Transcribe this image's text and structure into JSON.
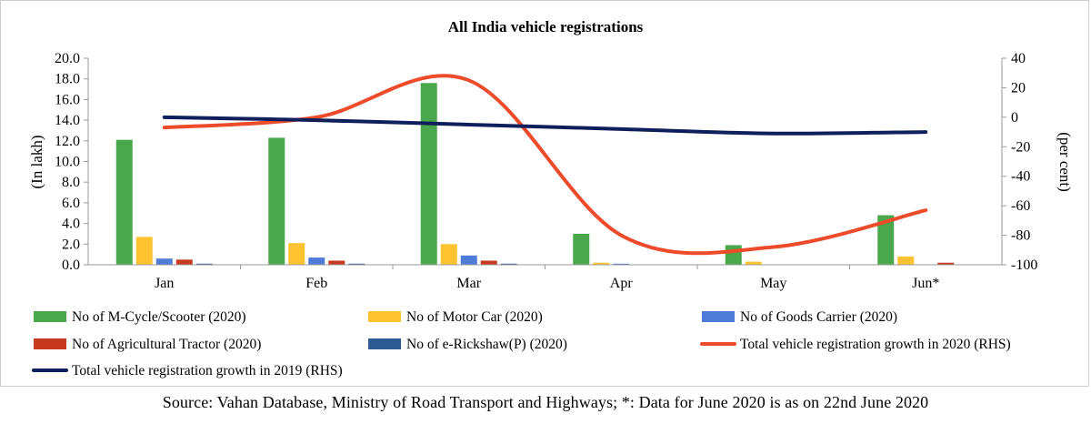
{
  "chart_data": {
    "type": "bar",
    "title": "All India vehicle registrations",
    "categories": [
      "Jan",
      "Feb",
      "Mar",
      "Apr",
      "May",
      "Jun*"
    ],
    "ylabel": "(In lakh)",
    "ylim": [
      0,
      20
    ],
    "yticks": [
      "20.0",
      "18.0",
      "16.0",
      "14.0",
      "12.0",
      "10.0",
      "8.0",
      "6.0",
      "4.0",
      "2.0",
      "0.0"
    ],
    "y2label": "(per cent)",
    "y2lim": [
      -100,
      40
    ],
    "y2ticks": [
      "40",
      "20",
      "0",
      "-20",
      "-40",
      "-60",
      "-80",
      "-100"
    ],
    "bar_series": [
      {
        "name": "No of M-Cycle/Scooter (2020)",
        "color": "#4aa84c",
        "values": [
          12.1,
          12.3,
          17.6,
          3.0,
          1.9,
          4.8
        ]
      },
      {
        "name": "No of Motor Car (2020)",
        "color": "#fcc22f",
        "values": [
          2.7,
          2.1,
          2.0,
          0.2,
          0.3,
          0.8
        ]
      },
      {
        "name": "No of Goods Carrier (2020)",
        "color": "#4f7cd8",
        "values": [
          0.6,
          0.7,
          0.9,
          0.1,
          0.0,
          0.0
        ]
      },
      {
        "name": "No of Agricultural Tractor (2020)",
        "color": "#c73a20",
        "values": [
          0.5,
          0.4,
          0.4,
          0.0,
          0.0,
          0.2
        ]
      },
      {
        "name": "No of e-Rickshaw(P) (2020)",
        "color": "#2c5b94",
        "values": [
          0.1,
          0.1,
          0.1,
          0.0,
          0.0,
          0.0
        ]
      }
    ],
    "line_series": [
      {
        "name": "Total vehicle registration growth in 2020 (RHS)",
        "color": "#ee4b2b",
        "axis": "right",
        "values": [
          -7,
          0,
          25,
          -80,
          -88,
          -63
        ]
      },
      {
        "name": "Total vehicle registration growth in 2019 (RHS)",
        "color": "#0f1f5c",
        "axis": "right",
        "values": [
          0,
          -2,
          -5,
          -8,
          -11,
          -10
        ]
      }
    ],
    "legend": [
      {
        "label": "No of M-Cycle/Scooter (2020)",
        "kind": "bar",
        "color": "#4aa84c"
      },
      {
        "label": "No of Motor Car (2020)",
        "kind": "bar",
        "color": "#fcc22f"
      },
      {
        "label": "No of Goods Carrier (2020)",
        "kind": "bar",
        "color": "#4f7cd8"
      },
      {
        "label": "No of Agricultural Tractor (2020)",
        "kind": "bar",
        "color": "#c73a20"
      },
      {
        "label": "No of e-Rickshaw(P) (2020)",
        "kind": "bar",
        "color": "#2c5b94"
      },
      {
        "label": "Total vehicle registration growth in 2020 (RHS)",
        "kind": "line",
        "color": "#ee4b2b"
      },
      {
        "label": "Total vehicle registration growth in 2019 (RHS)",
        "kind": "line",
        "color": "#0f1f5c"
      }
    ]
  },
  "source_note": "Source: Vahan Database, Ministry of Road Transport and Highways;  *: Data for June 2020 is as on 22nd June 2020"
}
